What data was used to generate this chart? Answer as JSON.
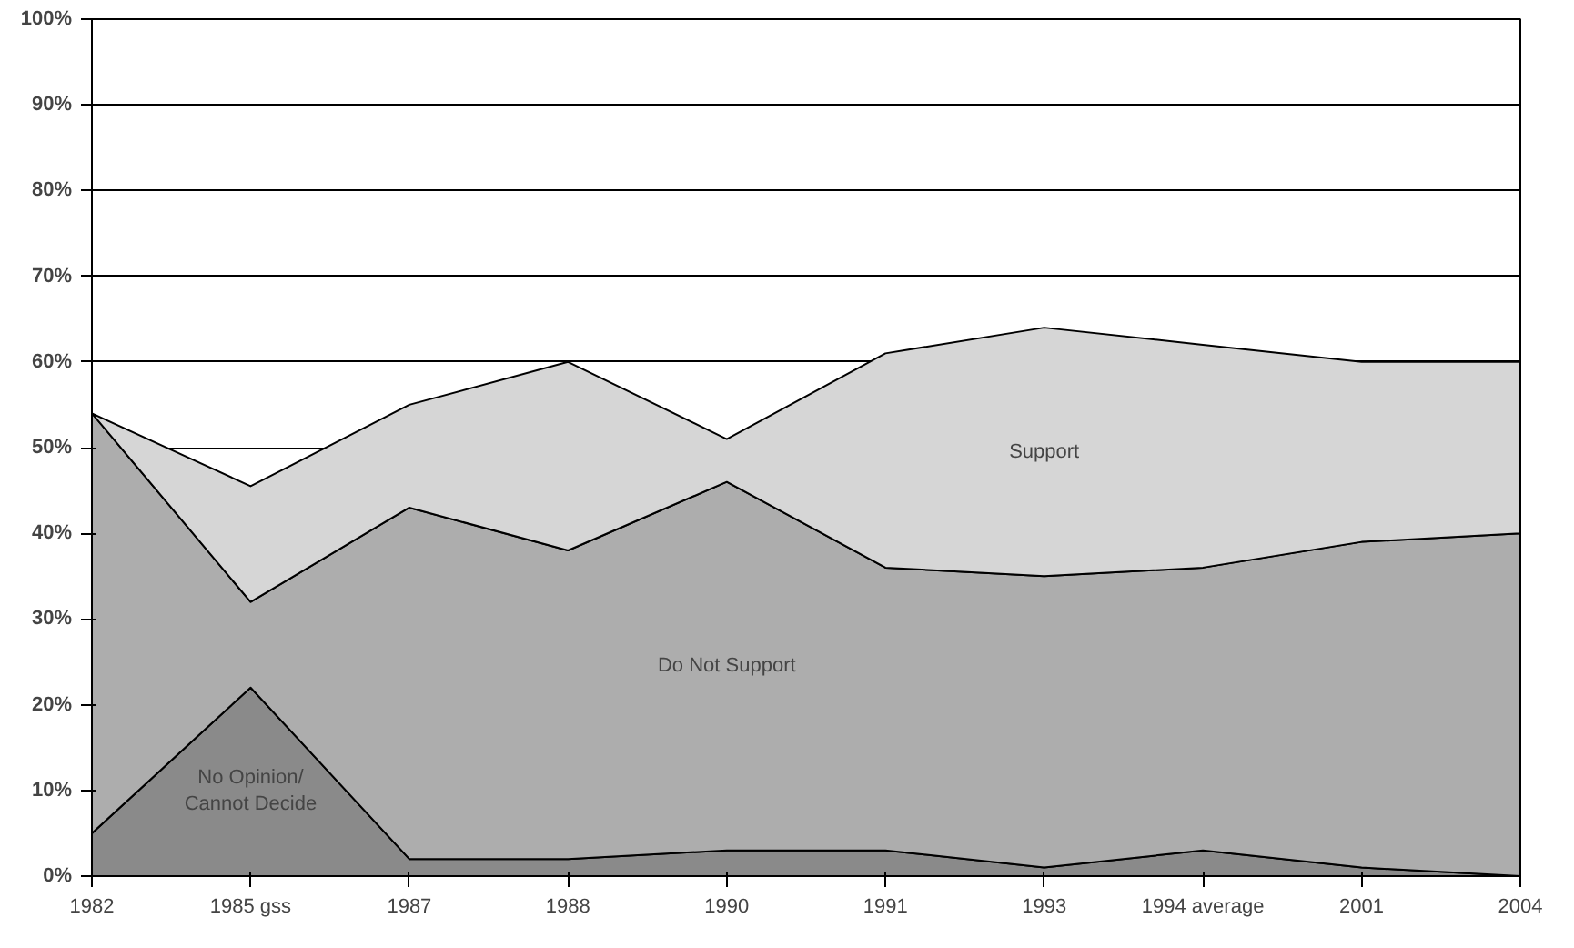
{
  "chart_data": {
    "type": "area",
    "stacked": true,
    "categories": [
      "1982",
      "1985 gss",
      "1987",
      "1988",
      "1990",
      "1991",
      "1993",
      "1994 average",
      "2001",
      "2004"
    ],
    "series": [
      {
        "name": "No Opinion/\nCannot Decide",
        "color": "#8a8a8a",
        "values": [
          5,
          22,
          2,
          2,
          3,
          3,
          1,
          3,
          1,
          0
        ]
      },
      {
        "name": "Do Not Support",
        "color": "#adadad",
        "values": [
          49,
          10,
          41,
          36,
          43,
          33,
          34,
          33,
          38,
          40
        ]
      },
      {
        "name": "Support",
        "color": "#d6d6d6",
        "values": [
          0,
          13.5,
          12,
          22,
          5,
          25,
          29,
          26,
          21,
          20
        ]
      }
    ],
    "ylim": [
      0,
      100
    ],
    "yticks": [
      {
        "value": 0,
        "label": "0%"
      },
      {
        "value": 10,
        "label": "10%"
      },
      {
        "value": 20,
        "label": "20%"
      },
      {
        "value": 30,
        "label": "30%"
      },
      {
        "value": 40,
        "label": "40%"
      },
      {
        "value": 50,
        "label": "50%"
      },
      {
        "value": 60,
        "label": "60%"
      },
      {
        "value": 70,
        "label": "70%"
      },
      {
        "value": 80,
        "label": "80%"
      },
      {
        "value": 90,
        "label": "90%"
      },
      {
        "value": 100,
        "label": "100%"
      }
    ],
    "grid": "y"
  }
}
